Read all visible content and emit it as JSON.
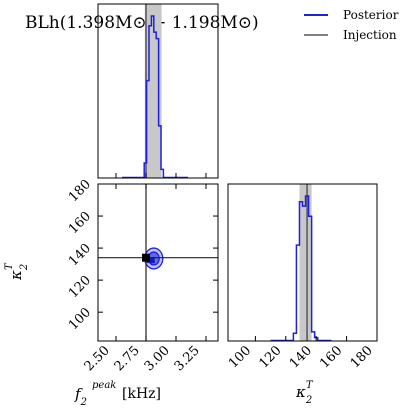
{
  "chart_data": {
    "type": "corner",
    "title": "BLh(1.398M⊙ − 1.198M⊙)",
    "legend": {
      "placement": "top-right",
      "entries": [
        {
          "label": "Posterior",
          "color": "#1f1fe0"
        },
        {
          "label": "Injection",
          "color": "#555555"
        }
      ]
    },
    "parameters": [
      {
        "symbol": "f2",
        "sup": "peak",
        "unit": "[kHz]",
        "range": [
          2.35,
          3.35
        ],
        "ticks": [
          "2.50",
          "2.75",
          "3.00",
          "3.25"
        ],
        "tick_values": [
          2.5,
          2.75,
          3.0,
          3.25
        ],
        "injection": 2.75,
        "credible_interval": [
          2.74,
          2.88
        ]
      },
      {
        "symbol": "κ2",
        "sup": "T",
        "unit": "",
        "range": [
          82,
          180
        ],
        "ticks": [
          "100",
          "120",
          "140",
          "160",
          "180"
        ],
        "tick_values": [
          100,
          120,
          140,
          160,
          180
        ],
        "injection": 134,
        "credible_interval": [
          129,
          137
        ]
      }
    ],
    "marginal_f2": {
      "bin_edges": [
        2.55,
        2.735,
        2.755,
        2.775,
        2.795,
        2.815,
        2.835,
        2.855,
        2.875,
        2.895,
        3.1
      ],
      "density": [
        0,
        0.09,
        0.6,
        0.94,
        1.0,
        0.9,
        0.86,
        0.32,
        0.05,
        0
      ]
    },
    "marginal_kappa": {
      "bin_edges": [
        110,
        125,
        127,
        129,
        131,
        133,
        135,
        137,
        139,
        141,
        150
      ],
      "density": [
        0,
        0.05,
        0.66,
        0.96,
        0.93,
        1.0,
        0.86,
        0.06,
        0.02,
        0
      ]
    },
    "joint": {
      "center": [
        2.815,
        133.5
      ],
      "peak": [
        2.79,
        132.5
      ],
      "contours": [
        {
          "level": "outer",
          "semi_axes": [
            0.075,
            6.5
          ]
        },
        {
          "level": "inner",
          "semi_axes": [
            0.045,
            4.0
          ]
        }
      ]
    }
  }
}
